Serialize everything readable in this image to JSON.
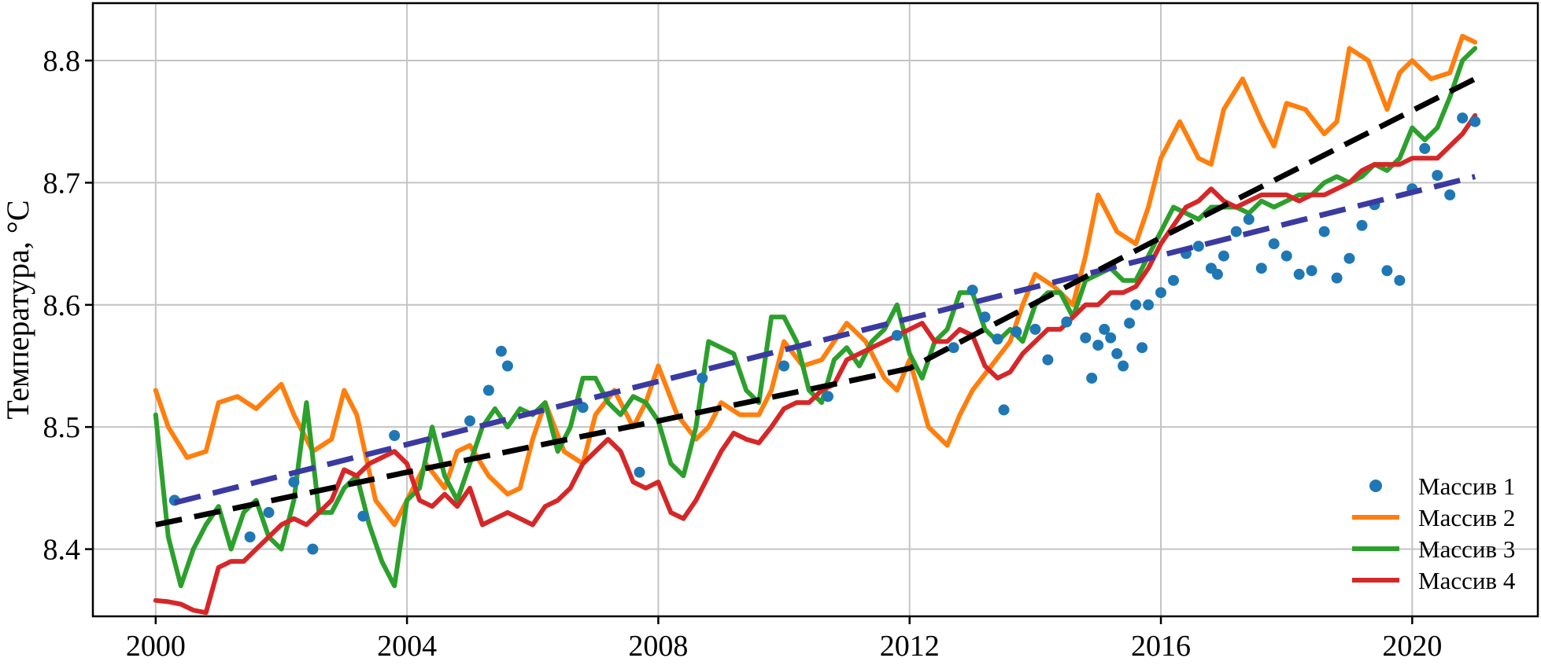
{
  "chart_data": {
    "type": "line",
    "title": "",
    "xlabel": "",
    "ylabel": "Температура, °C",
    "xlim": [
      1999.0,
      2022.0
    ],
    "ylim": [
      8.345,
      8.847
    ],
    "xticks": [
      2000,
      2004,
      2008,
      2012,
      2016,
      2020
    ],
    "xtick_labels": [
      "2000",
      "2004",
      "2008",
      "2012",
      "2016",
      "2020"
    ],
    "yticks": [
      8.4,
      8.5,
      8.6,
      8.7,
      8.8
    ],
    "ytick_labels": [
      "8.4",
      "8.5",
      "8.6",
      "8.7",
      "8.8"
    ],
    "grid": true,
    "legend_position": "bottom-right",
    "series": [
      {
        "name": "Массив 1",
        "kind": "scatter",
        "color": "#1f77b4",
        "x": [
          2000.3,
          2001.5,
          2001.8,
          2002.2,
          2002.5,
          2003.3,
          2003.8,
          2005.0,
          2005.3,
          2005.5,
          2005.6,
          2006.8,
          2007.7,
          2008.7,
          2010.0,
          2010.7,
          2011.8,
          2012.7,
          2013.0,
          2013.2,
          2013.4,
          2013.5,
          2013.7,
          2014.0,
          2014.2,
          2014.5,
          2014.8,
          2014.9,
          2015.0,
          2015.1,
          2015.2,
          2015.3,
          2015.4,
          2015.5,
          2015.6,
          2015.7,
          2015.8,
          2016.0,
          2016.2,
          2016.4,
          2016.6,
          2016.8,
          2016.9,
          2017.0,
          2017.2,
          2017.4,
          2017.6,
          2017.8,
          2018.0,
          2018.2,
          2018.4,
          2018.6,
          2018.8,
          2019.0,
          2019.2,
          2019.4,
          2019.6,
          2019.8,
          2020.0,
          2020.2,
          2020.4,
          2020.6,
          2020.8,
          2021.0
        ],
        "y": [
          8.44,
          8.41,
          8.43,
          8.455,
          8.4,
          8.427,
          8.493,
          8.505,
          8.53,
          8.562,
          8.55,
          8.516,
          8.463,
          8.54,
          8.55,
          8.525,
          8.575,
          8.565,
          8.612,
          8.59,
          8.572,
          8.514,
          8.578,
          8.58,
          8.555,
          8.586,
          8.573,
          8.54,
          8.567,
          8.58,
          8.573,
          8.56,
          8.55,
          8.585,
          8.6,
          8.565,
          8.6,
          8.61,
          8.62,
          8.642,
          8.648,
          8.63,
          8.625,
          8.64,
          8.66,
          8.67,
          8.63,
          8.65,
          8.64,
          8.625,
          8.628,
          8.66,
          8.622,
          8.638,
          8.665,
          8.682,
          8.628,
          8.62,
          8.695,
          8.728,
          8.706,
          8.69,
          8.753,
          8.75
        ]
      },
      {
        "name": "Массив 2",
        "kind": "line",
        "color": "#ff7f0e",
        "x": [
          2000.0,
          2000.2,
          2000.5,
          2000.8,
          2001.0,
          2001.3,
          2001.6,
          2001.8,
          2002.0,
          2002.2,
          2002.5,
          2002.8,
          2003.0,
          2003.2,
          2003.5,
          2003.8,
          2004.0,
          2004.3,
          2004.6,
          2004.8,
          2005.0,
          2005.3,
          2005.6,
          2005.8,
          2006.0,
          2006.2,
          2006.5,
          2006.8,
          2007.0,
          2007.3,
          2007.6,
          2007.8,
          2008.0,
          2008.3,
          2008.6,
          2008.8,
          2009.0,
          2009.3,
          2009.6,
          2009.8,
          2010.0,
          2010.3,
          2010.6,
          2010.8,
          2011.0,
          2011.3,
          2011.6,
          2011.8,
          2012.0,
          2012.3,
          2012.6,
          2012.8,
          2013.0,
          2013.3,
          2013.6,
          2013.8,
          2014.0,
          2014.3,
          2014.6,
          2014.8,
          2015.0,
          2015.3,
          2015.6,
          2015.8,
          2016.0,
          2016.3,
          2016.6,
          2016.8,
          2017.0,
          2017.3,
          2017.6,
          2017.8,
          2018.0,
          2018.3,
          2018.6,
          2018.8,
          2019.0,
          2019.3,
          2019.6,
          2019.8,
          2020.0,
          2020.3,
          2020.6,
          2020.8,
          2021.0
        ],
        "y": [
          8.53,
          8.5,
          8.475,
          8.48,
          8.52,
          8.525,
          8.515,
          8.525,
          8.535,
          8.51,
          8.48,
          8.49,
          8.53,
          8.51,
          8.44,
          8.42,
          8.44,
          8.47,
          8.45,
          8.48,
          8.485,
          8.46,
          8.445,
          8.45,
          8.49,
          8.52,
          8.48,
          8.47,
          8.51,
          8.53,
          8.5,
          8.52,
          8.55,
          8.51,
          8.49,
          8.5,
          8.52,
          8.51,
          8.51,
          8.53,
          8.57,
          8.55,
          8.555,
          8.57,
          8.585,
          8.57,
          8.54,
          8.53,
          8.555,
          8.5,
          8.485,
          8.51,
          8.53,
          8.55,
          8.57,
          8.6,
          8.625,
          8.615,
          8.6,
          8.64,
          8.69,
          8.66,
          8.65,
          8.68,
          8.72,
          8.75,
          8.72,
          8.715,
          8.76,
          8.785,
          8.75,
          8.73,
          8.765,
          8.76,
          8.74,
          8.75,
          8.81,
          8.8,
          8.76,
          8.79,
          8.8,
          8.785,
          8.79,
          8.82,
          8.815
        ]
      },
      {
        "name": "Массив 3",
        "kind": "line",
        "color": "#2ca02c",
        "x": [
          2000.0,
          2000.2,
          2000.4,
          2000.6,
          2000.8,
          2001.0,
          2001.2,
          2001.4,
          2001.6,
          2001.8,
          2002.0,
          2002.2,
          2002.4,
          2002.6,
          2002.8,
          2003.0,
          2003.2,
          2003.4,
          2003.6,
          2003.8,
          2004.0,
          2004.2,
          2004.4,
          2004.6,
          2004.8,
          2005.0,
          2005.2,
          2005.4,
          2005.6,
          2005.8,
          2006.0,
          2006.2,
          2006.4,
          2006.6,
          2006.8,
          2007.0,
          2007.2,
          2007.4,
          2007.6,
          2007.8,
          2008.0,
          2008.2,
          2008.4,
          2008.6,
          2008.8,
          2009.0,
          2009.2,
          2009.4,
          2009.6,
          2009.8,
          2010.0,
          2010.2,
          2010.4,
          2010.6,
          2010.8,
          2011.0,
          2011.2,
          2011.4,
          2011.6,
          2011.8,
          2012.0,
          2012.2,
          2012.4,
          2012.6,
          2012.8,
          2013.0,
          2013.2,
          2013.4,
          2013.6,
          2013.8,
          2014.0,
          2014.2,
          2014.4,
          2014.6,
          2014.8,
          2015.0,
          2015.2,
          2015.4,
          2015.6,
          2015.8,
          2016.0,
          2016.2,
          2016.4,
          2016.6,
          2016.8,
          2017.0,
          2017.2,
          2017.4,
          2017.6,
          2017.8,
          2018.0,
          2018.2,
          2018.4,
          2018.6,
          2018.8,
          2019.0,
          2019.2,
          2019.4,
          2019.6,
          2019.8,
          2020.0,
          2020.2,
          2020.4,
          2020.6,
          2020.8,
          2021.0
        ],
        "y": [
          8.51,
          8.41,
          8.37,
          8.4,
          8.42,
          8.435,
          8.4,
          8.43,
          8.44,
          8.41,
          8.4,
          8.44,
          8.52,
          8.43,
          8.43,
          8.45,
          8.46,
          8.42,
          8.39,
          8.37,
          8.44,
          8.45,
          8.5,
          8.46,
          8.44,
          8.47,
          8.5,
          8.515,
          8.5,
          8.515,
          8.51,
          8.52,
          8.48,
          8.5,
          8.54,
          8.54,
          8.52,
          8.51,
          8.525,
          8.52,
          8.505,
          8.47,
          8.46,
          8.5,
          8.57,
          8.565,
          8.56,
          8.53,
          8.52,
          8.59,
          8.59,
          8.57,
          8.53,
          8.52,
          8.555,
          8.565,
          8.55,
          8.57,
          8.58,
          8.6,
          8.56,
          8.54,
          8.57,
          8.58,
          8.61,
          8.61,
          8.58,
          8.57,
          8.58,
          8.57,
          8.6,
          8.61,
          8.61,
          8.59,
          8.62,
          8.625,
          8.63,
          8.62,
          8.62,
          8.64,
          8.66,
          8.68,
          8.675,
          8.67,
          8.68,
          8.68,
          8.68,
          8.675,
          8.685,
          8.68,
          8.685,
          8.69,
          8.69,
          8.7,
          8.705,
          8.7,
          8.705,
          8.715,
          8.71,
          8.72,
          8.745,
          8.735,
          8.745,
          8.77,
          8.8,
          8.81
        ]
      },
      {
        "name": "Массив 4",
        "kind": "line",
        "color": "#d62728",
        "x": [
          2000.0,
          2000.2,
          2000.4,
          2000.6,
          2000.8,
          2001.0,
          2001.2,
          2001.4,
          2001.6,
          2001.8,
          2002.0,
          2002.2,
          2002.4,
          2002.6,
          2002.8,
          2003.0,
          2003.2,
          2003.4,
          2003.6,
          2003.8,
          2004.0,
          2004.2,
          2004.4,
          2004.6,
          2004.8,
          2005.0,
          2005.2,
          2005.4,
          2005.6,
          2005.8,
          2006.0,
          2006.2,
          2006.4,
          2006.6,
          2006.8,
          2007.0,
          2007.2,
          2007.4,
          2007.6,
          2007.8,
          2008.0,
          2008.2,
          2008.4,
          2008.6,
          2008.8,
          2009.0,
          2009.2,
          2009.4,
          2009.6,
          2009.8,
          2010.0,
          2010.2,
          2010.4,
          2010.6,
          2010.8,
          2011.0,
          2011.2,
          2011.4,
          2011.6,
          2011.8,
          2012.0,
          2012.2,
          2012.4,
          2012.6,
          2012.8,
          2013.0,
          2013.2,
          2013.4,
          2013.6,
          2013.8,
          2014.0,
          2014.2,
          2014.4,
          2014.6,
          2014.8,
          2015.0,
          2015.2,
          2015.4,
          2015.6,
          2015.8,
          2016.0,
          2016.2,
          2016.4,
          2016.6,
          2016.8,
          2017.0,
          2017.2,
          2017.4,
          2017.6,
          2017.8,
          2018.0,
          2018.2,
          2018.4,
          2018.6,
          2018.8,
          2019.0,
          2019.2,
          2019.4,
          2019.6,
          2019.8,
          2020.0,
          2020.2,
          2020.4,
          2020.6,
          2020.8,
          2021.0
        ],
        "y": [
          8.358,
          8.357,
          8.355,
          8.35,
          8.348,
          8.385,
          8.39,
          8.39,
          8.4,
          8.41,
          8.42,
          8.425,
          8.42,
          8.43,
          8.44,
          8.465,
          8.46,
          8.47,
          8.475,
          8.48,
          8.47,
          8.44,
          8.435,
          8.445,
          8.435,
          8.45,
          8.42,
          8.425,
          8.43,
          8.425,
          8.42,
          8.435,
          8.44,
          8.45,
          8.47,
          8.48,
          8.49,
          8.48,
          8.455,
          8.45,
          8.455,
          8.43,
          8.425,
          8.44,
          8.46,
          8.48,
          8.495,
          8.49,
          8.487,
          8.5,
          8.515,
          8.52,
          8.52,
          8.53,
          8.535,
          8.555,
          8.56,
          8.565,
          8.57,
          8.575,
          8.58,
          8.585,
          8.57,
          8.57,
          8.58,
          8.575,
          8.55,
          8.54,
          8.545,
          8.56,
          8.57,
          8.58,
          8.58,
          8.59,
          8.6,
          8.6,
          8.61,
          8.61,
          8.615,
          8.63,
          8.65,
          8.665,
          8.68,
          8.685,
          8.695,
          8.685,
          8.68,
          8.685,
          8.69,
          8.69,
          8.69,
          8.685,
          8.69,
          8.69,
          8.695,
          8.7,
          8.71,
          8.715,
          8.715,
          8.715,
          8.72,
          8.72,
          8.72,
          8.73,
          8.74,
          8.755
        ]
      },
      {
        "name": "",
        "kind": "trend",
        "color": "#3a3aa0",
        "x": [
          2000.3,
          2021.0
        ],
        "y": [
          8.438,
          8.705
        ]
      },
      {
        "name": "",
        "kind": "trend",
        "color": "#000000",
        "x": [
          2000.0,
          2004.0,
          2008.0,
          2012.0,
          2016.0,
          2021.0
        ],
        "y": [
          8.42,
          8.463,
          8.505,
          8.548,
          8.655,
          8.785
        ]
      }
    ]
  }
}
